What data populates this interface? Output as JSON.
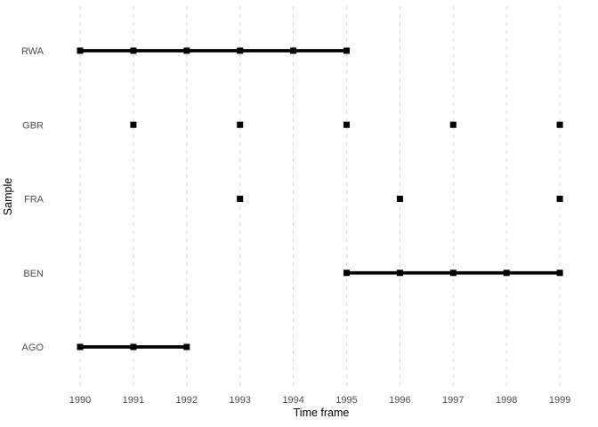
{
  "chart_data": {
    "type": "scatter",
    "title": "",
    "xlabel": "Time frame",
    "ylabel": "Sample",
    "x_ticks": [
      1990,
      1991,
      1992,
      1993,
      1994,
      1995,
      1996,
      1997,
      1998,
      1999
    ],
    "xlim": [
      1989.55,
      1999.45
    ],
    "y_categories": [
      "AGO",
      "BEN",
      "FRA",
      "GBR",
      "RWA"
    ],
    "grid": "vertical-dashed-only",
    "legend": "none",
    "marker": "filled-square",
    "series": [
      {
        "name": "RWA",
        "years": [
          1990,
          1991,
          1992,
          1993,
          1994,
          1995
        ],
        "connected": true
      },
      {
        "name": "GBR",
        "years": [
          1991,
          1993,
          1995,
          1997,
          1999
        ],
        "connected": false
      },
      {
        "name": "FRA",
        "years": [
          1993,
          1996,
          1999
        ],
        "connected": false
      },
      {
        "name": "BEN",
        "years": [
          1995,
          1996,
          1997,
          1998,
          1999
        ],
        "connected": true
      },
      {
        "name": "AGO",
        "years": [
          1990,
          1991,
          1992
        ],
        "connected": true
      }
    ],
    "colors": {
      "data": "#000000",
      "grid": "#d9d9d9",
      "axis_text": "#4d4d4d",
      "axis_title": "#000000",
      "background": "#ffffff"
    }
  }
}
